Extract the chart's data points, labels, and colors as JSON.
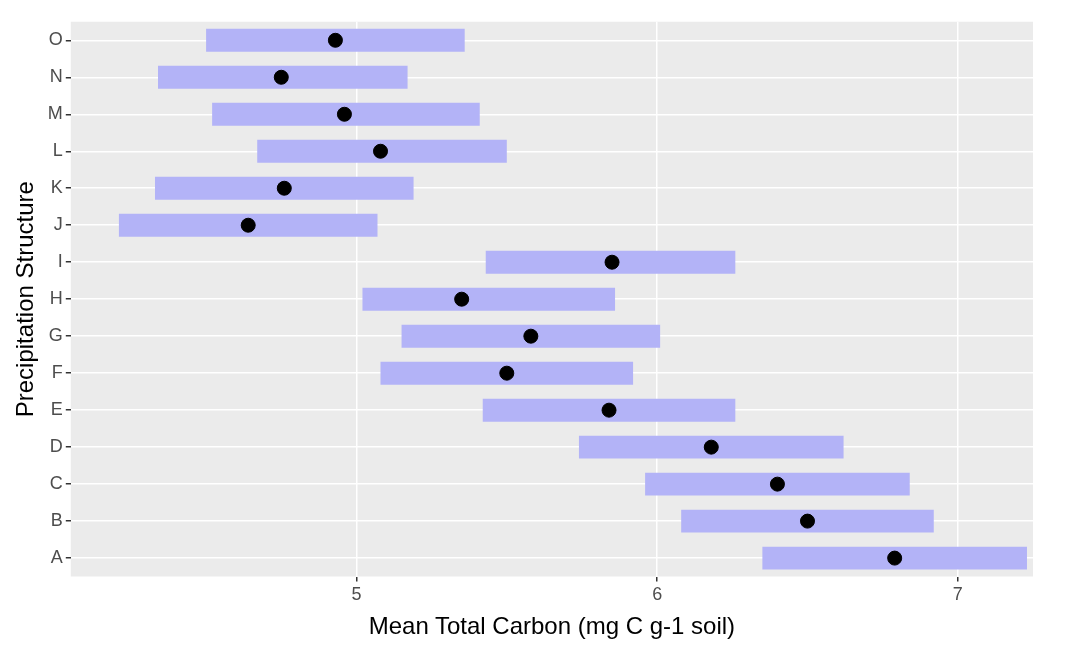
{
  "chart_data": {
    "type": "bar",
    "orientation": "horizontal",
    "xlabel": "Mean Total Carbon (mg C g-1 soil)",
    "ylabel": "Precipitation Structure",
    "categories": [
      "O",
      "N",
      "M",
      "L",
      "K",
      "J",
      "I",
      "H",
      "G",
      "F",
      "E",
      "D",
      "C",
      "B",
      "A"
    ],
    "series": [
      {
        "color": "#b3b3f7",
        "base": [
          4.5,
          4.34,
          4.52,
          4.67,
          4.33,
          4.21,
          5.43,
          5.02,
          5.15,
          5.08,
          5.42,
          5.74,
          5.96,
          6.08,
          6.35
        ],
        "values": [
          0.86,
          0.83,
          0.89,
          0.83,
          0.86,
          0.86,
          0.83,
          0.84,
          0.86,
          0.84,
          0.84,
          0.88,
          0.88,
          0.84,
          0.88
        ]
      },
      {
        "type": "scatter",
        "color": "#000000",
        "marker": "circle",
        "values": [
          4.93,
          4.75,
          4.96,
          5.08,
          4.76,
          4.64,
          5.85,
          5.35,
          5.58,
          5.5,
          5.84,
          6.18,
          6.4,
          6.5,
          6.79
        ]
      }
    ],
    "xlim": [
      4.05,
      7.25
    ],
    "xticks": [
      5,
      6,
      7
    ],
    "grid": true,
    "legend": false
  }
}
